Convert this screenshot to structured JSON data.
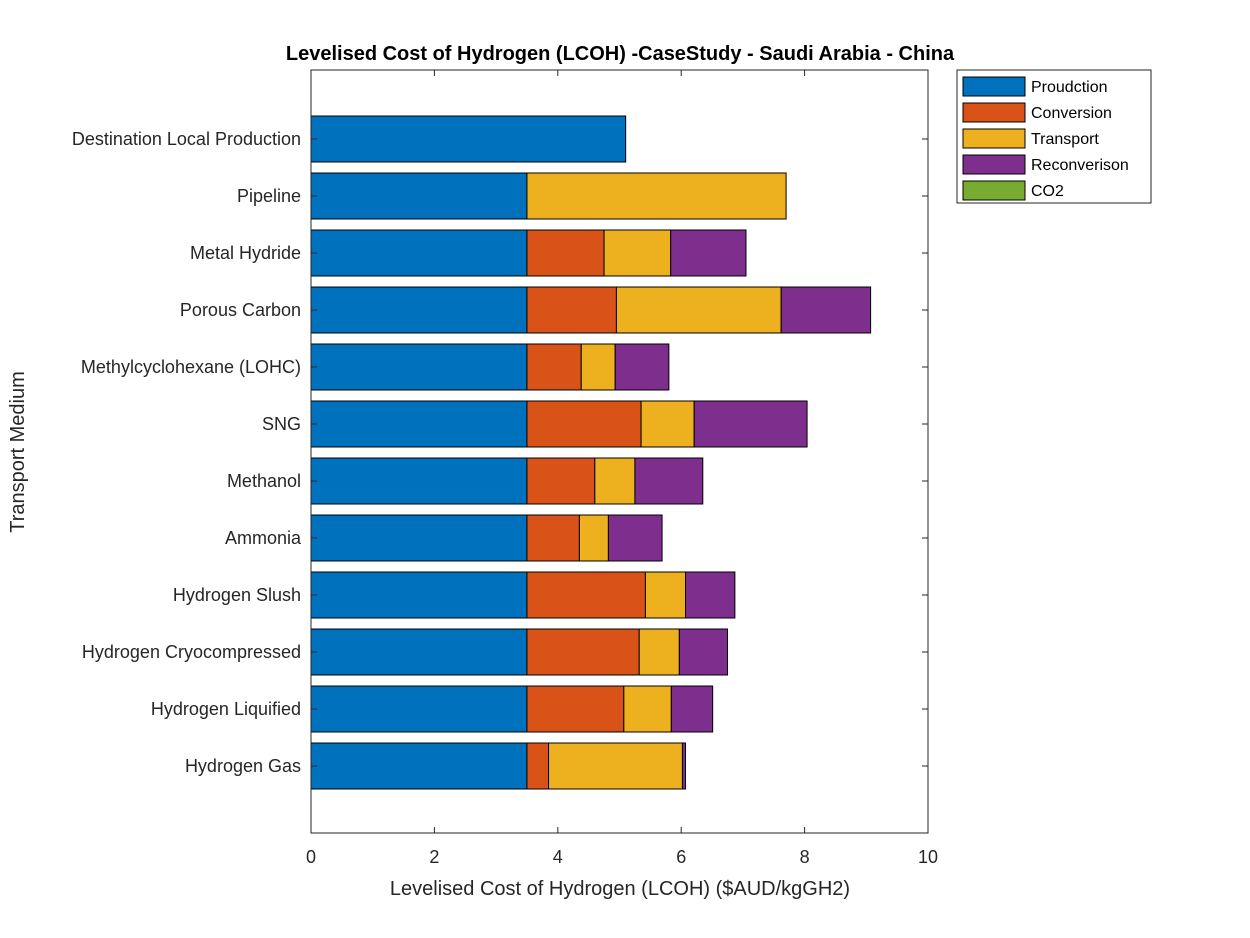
{
  "chart_data": {
    "type": "bar",
    "orientation": "horizontal",
    "stacked": true,
    "title": "Levelised Cost of Hydrogen (LCOH) -CaseStudy - Saudi Arabia - China",
    "xlabel": "Levelised Cost of Hydrogen (LCOH) ($AUD/kgGH2)",
    "ylabel": "Transport Medium",
    "xlim": [
      0,
      10
    ],
    "xticks": [
      "0",
      "2",
      "4",
      "6",
      "8",
      "10"
    ],
    "grid": false,
    "legend_position": "outside-top-right",
    "categories": [
      "Destination Local Production",
      "Pipeline",
      "Metal Hydride",
      "Porous Carbon",
      "Methylcyclohexane (LOHC)",
      "SNG",
      "Methanol",
      "Ammonia",
      "Hydrogen Slush",
      "Hydrogen Cryocompressed",
      "Hydrogen Liquified",
      "Hydrogen Gas"
    ],
    "series": [
      {
        "name": "Proudction",
        "color": "#0072BD",
        "values": [
          5.1,
          3.5,
          3.5,
          3.5,
          3.5,
          3.5,
          3.5,
          3.5,
          3.5,
          3.5,
          3.5,
          3.5
        ]
      },
      {
        "name": "Conversion",
        "color": "#D95319",
        "values": [
          0,
          0,
          1.25,
          1.45,
          0.88,
          1.85,
          1.1,
          0.85,
          1.92,
          1.82,
          1.57,
          0.35
        ]
      },
      {
        "name": "Transport",
        "color": "#EDB120",
        "values": [
          0,
          4.2,
          1.08,
          2.67,
          0.55,
          0.86,
          0.65,
          0.47,
          0.65,
          0.65,
          0.77,
          2.17
        ]
      },
      {
        "name": "Reconverison",
        "color": "#7E2F8E",
        "values": [
          0,
          0,
          1.22,
          1.45,
          0.87,
          1.83,
          1.1,
          0.87,
          0.8,
          0.78,
          0.67,
          0.05
        ]
      },
      {
        "name": "CO2",
        "color": "#77AC30",
        "values": [
          0,
          0,
          0,
          0,
          0,
          0,
          0,
          0,
          0,
          0,
          0,
          0
        ]
      }
    ]
  }
}
